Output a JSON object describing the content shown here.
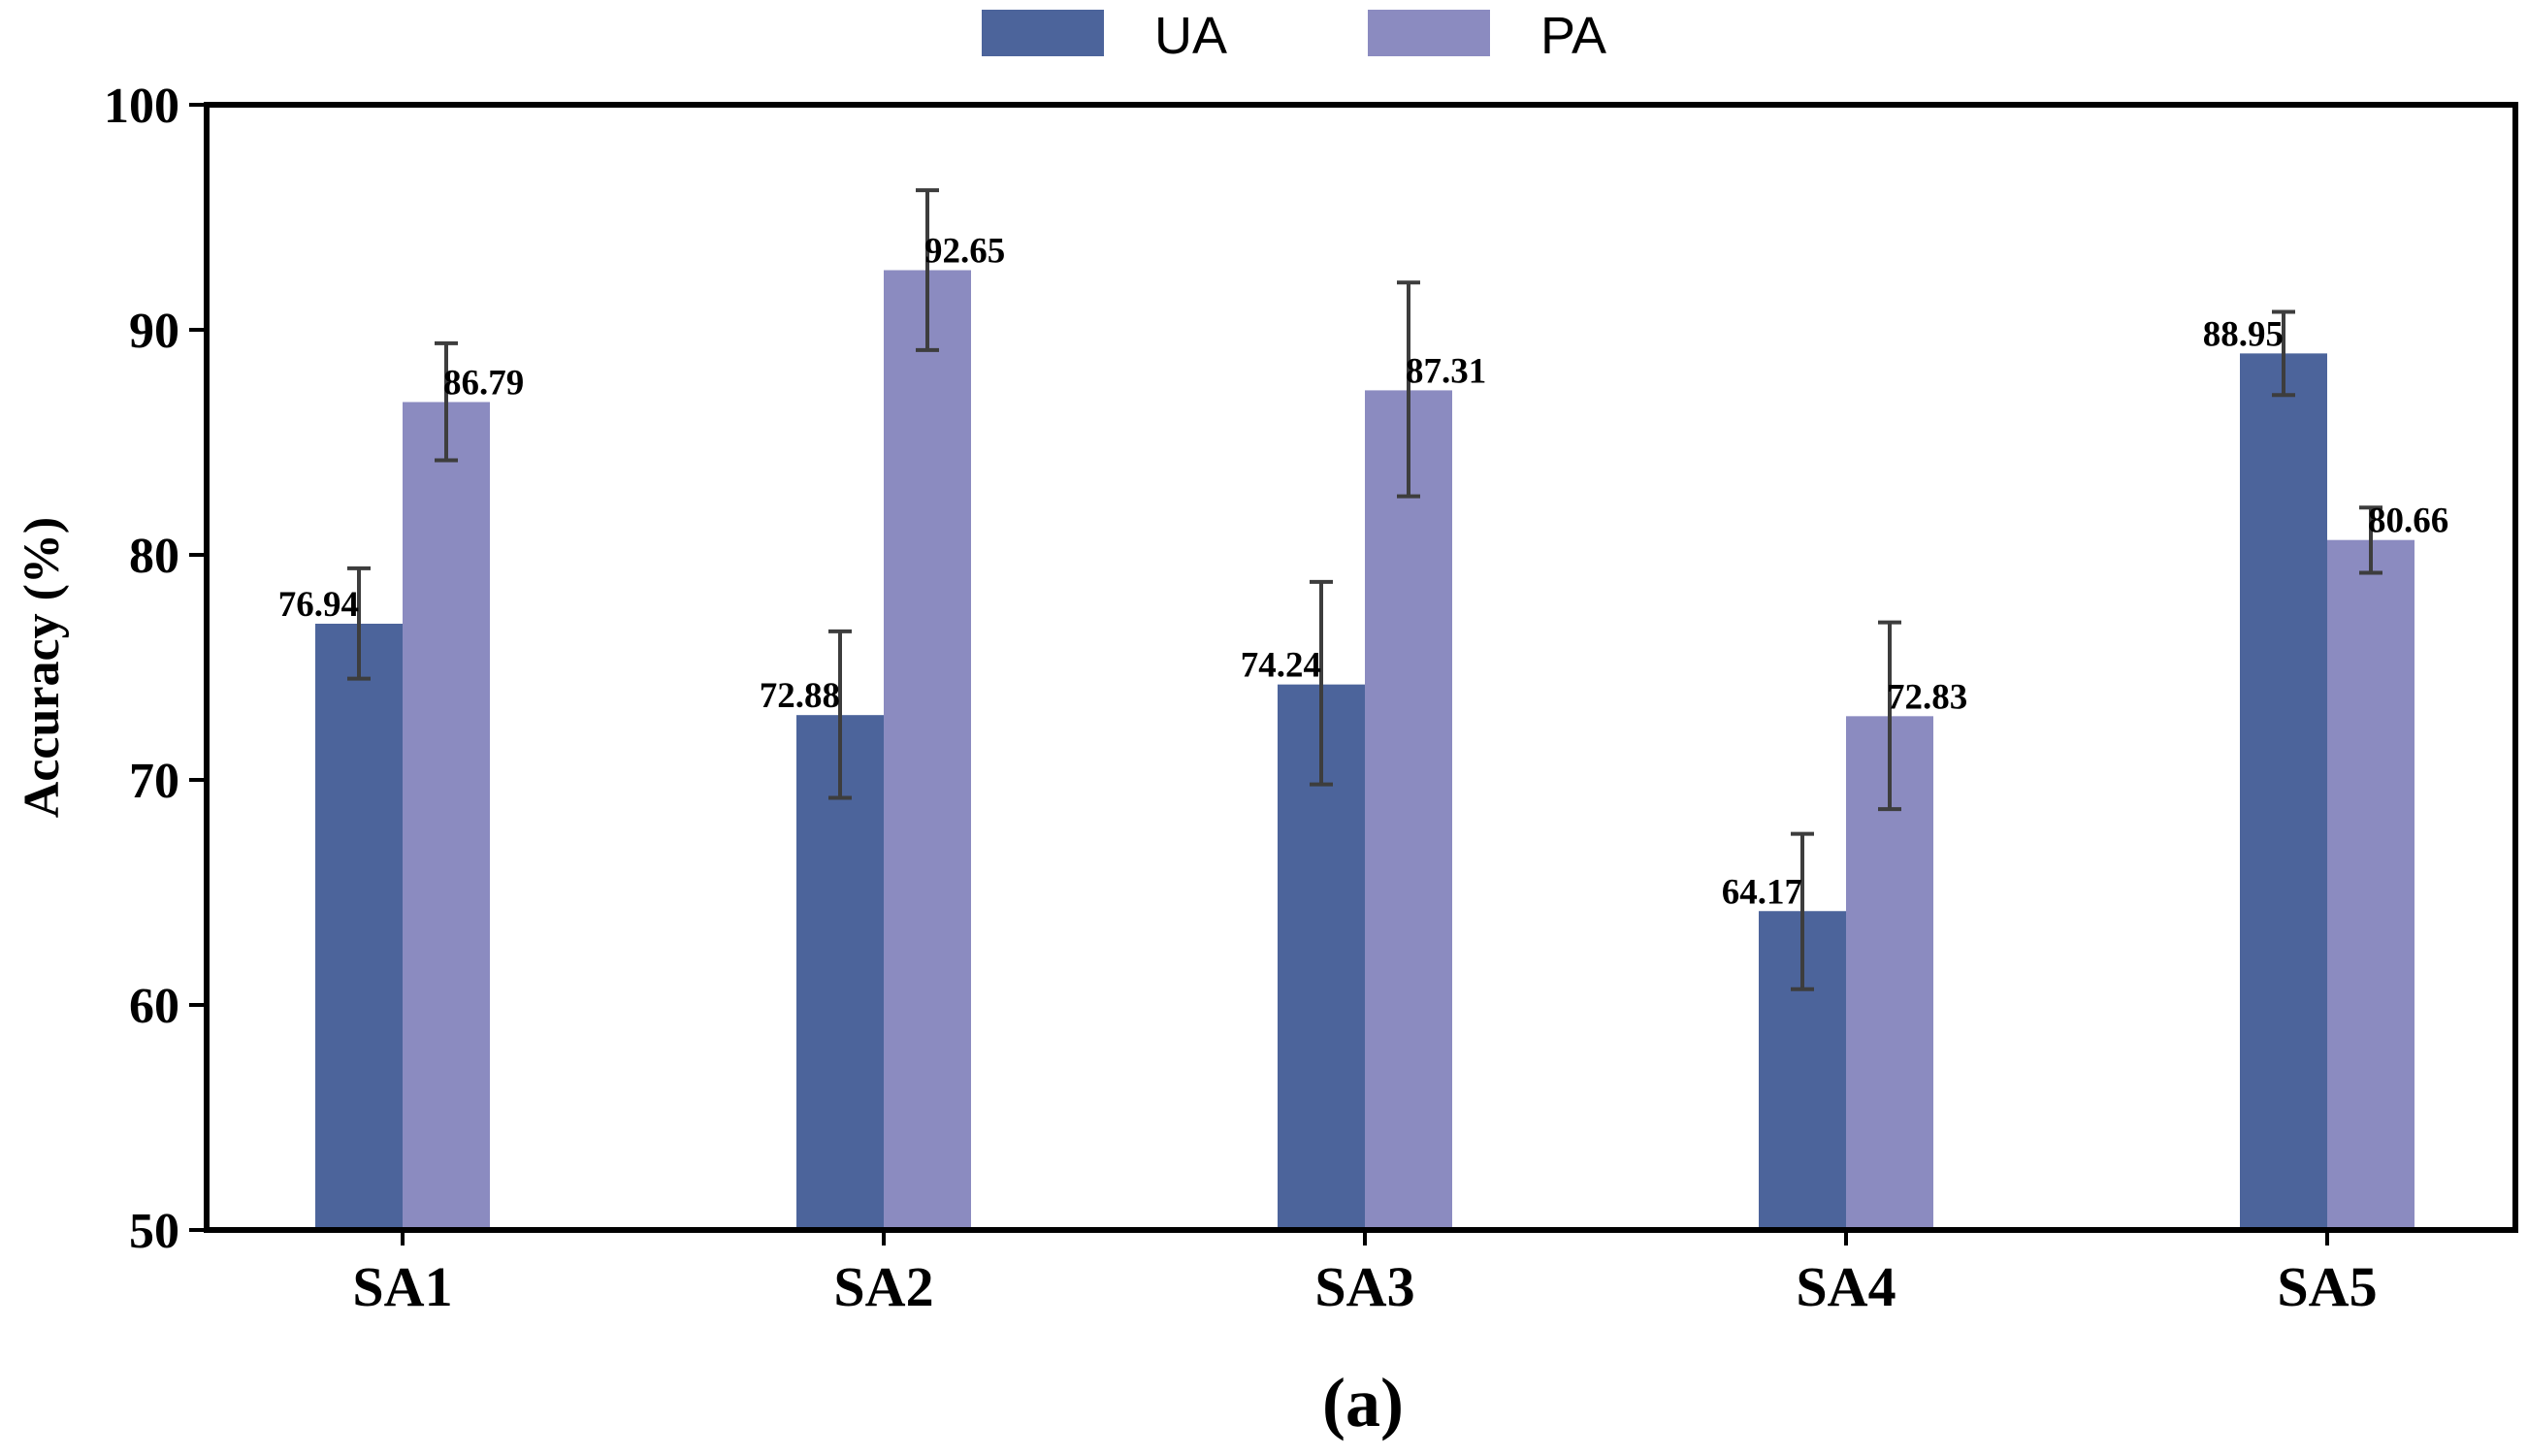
{
  "chart_data": {
    "type": "bar",
    "categories": [
      "SA1",
      "SA2",
      "SA3",
      "SA4",
      "SA5"
    ],
    "series": [
      {
        "name": "UA",
        "color": "#4c649b",
        "values": [
          76.94,
          72.88,
          74.24,
          64.17,
          88.95
        ],
        "labels": [
          "76.94",
          "72.88",
          "74.24",
          "64.17",
          "88.95"
        ],
        "error_low": [
          74.5,
          69.2,
          69.8,
          60.7,
          87.1
        ],
        "error_high": [
          79.4,
          76.6,
          78.8,
          67.6,
          90.8
        ]
      },
      {
        "name": "PA",
        "color": "#8b8bc0",
        "values": [
          86.79,
          92.65,
          87.31,
          72.83,
          80.66
        ],
        "labels": [
          "86.79",
          "92.65",
          "87.31",
          "72.83",
          "80.66"
        ],
        "error_low": [
          84.2,
          89.1,
          82.6,
          68.7,
          79.2
        ],
        "error_high": [
          89.4,
          96.2,
          92.1,
          77.0,
          82.1
        ]
      }
    ],
    "title": "",
    "xlabel": "",
    "ylabel": "Accuracy (%)",
    "ylim": [
      50,
      100
    ],
    "yticks": [
      "50",
      "60",
      "70",
      "80",
      "90",
      "100"
    ],
    "caption": "(a)",
    "legend_position": "top-center",
    "grid": false
  }
}
